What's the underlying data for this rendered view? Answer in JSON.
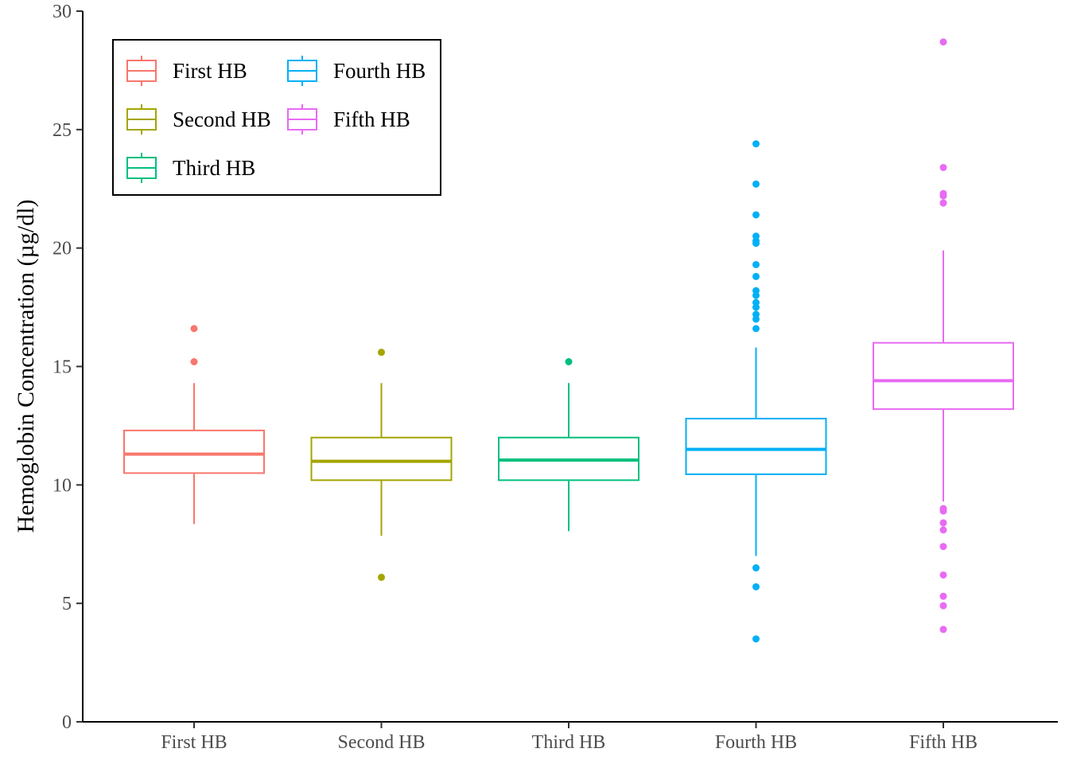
{
  "chart_data": {
    "type": "boxplot",
    "ylabel": "Hemoglobin Concentration (µg/dl)",
    "xlabel": "",
    "ylim": [
      0,
      30
    ],
    "yticks": [
      0,
      5,
      10,
      15,
      20,
      25,
      30
    ],
    "grid": false,
    "legend": {
      "placement": "top-left",
      "columns": 2
    },
    "categories": [
      "First HB",
      "Second HB",
      "Third HB",
      "Fourth HB",
      "Fifth HB"
    ],
    "series": [
      {
        "name": "First HB",
        "color": "#F8766D",
        "whisker_low": 8.35,
        "q1": 10.5,
        "median": 11.3,
        "q3": 12.3,
        "whisker_high": 14.3,
        "outliers": [
          15.2,
          16.6
        ]
      },
      {
        "name": "Second HB",
        "color": "#A3A500",
        "whisker_low": 7.85,
        "q1": 10.2,
        "median": 11.0,
        "q3": 12.0,
        "whisker_high": 14.3,
        "outliers": [
          15.6,
          6.1
        ]
      },
      {
        "name": "Third HB",
        "color": "#00BF7D",
        "whisker_low": 8.05,
        "q1": 10.2,
        "median": 11.05,
        "q3": 12.0,
        "whisker_high": 14.3,
        "outliers": [
          15.2
        ]
      },
      {
        "name": "Fourth HB",
        "color": "#00B0F6",
        "whisker_low": 7.0,
        "q1": 10.45,
        "median": 11.5,
        "q3": 12.8,
        "whisker_high": 15.8,
        "outliers": [
          24.4,
          22.7,
          21.4,
          20.5,
          20.3,
          20.2,
          19.3,
          18.8,
          18.2,
          18.0,
          17.7,
          17.5,
          17.2,
          17.0,
          16.6,
          6.5,
          5.7,
          3.5
        ]
      },
      {
        "name": "Fifth HB",
        "color": "#E76BF3",
        "whisker_low": 9.3,
        "q1": 13.2,
        "median": 14.4,
        "q3": 16.0,
        "whisker_high": 19.9,
        "outliers": [
          28.7,
          23.4,
          22.3,
          22.2,
          21.9,
          9.0,
          8.9,
          8.4,
          8.1,
          7.4,
          6.2,
          5.3,
          4.9,
          3.9
        ]
      }
    ]
  }
}
